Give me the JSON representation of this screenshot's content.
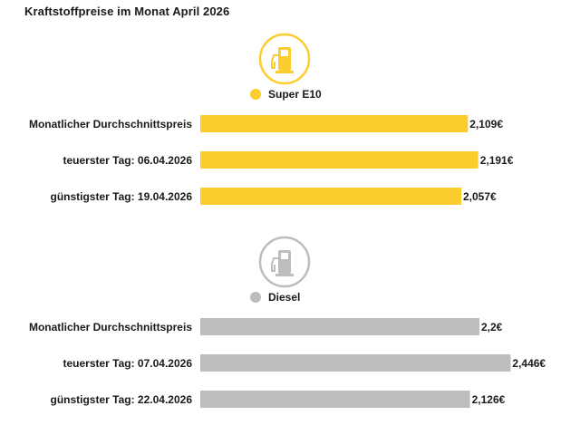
{
  "title": "Kraftstoffpreise im Monat April 2026",
  "colors": {
    "super": "#fdcc2e",
    "diesel": "#bdbdbd",
    "text": "#1a1a1a"
  },
  "chart_data": [
    {
      "type": "bar",
      "orientation": "horizontal",
      "icon": "fuel-pump-icon",
      "legend": "Super E10",
      "categories": [
        "Monatlicher Durchschnittspreis",
        "teuerster Tag: 06.04.2026",
        "günstigster Tag: 19.04.2026"
      ],
      "values": [
        2.109,
        2.191,
        2.057
      ],
      "value_labels": [
        "2,109€",
        "2,191€",
        "2,057€"
      ],
      "xlim": [
        0,
        2.5
      ]
    },
    {
      "type": "bar",
      "orientation": "horizontal",
      "icon": "fuel-pump-icon",
      "legend": "Diesel",
      "categories": [
        "Monatlicher Durchschnittspreis",
        "teuerster Tag: 07.04.2026",
        "günstigster Tag: 22.04.2026"
      ],
      "values": [
        2.2,
        2.446,
        2.126
      ],
      "value_labels": [
        "2,2€",
        "2,446€",
        "2,126€"
      ],
      "xlim": [
        0,
        2.5
      ]
    }
  ]
}
